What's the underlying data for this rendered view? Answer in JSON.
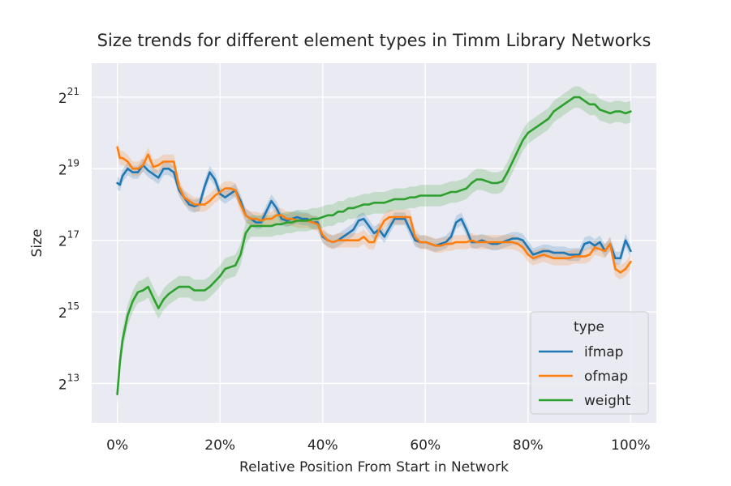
{
  "chart_data": {
    "type": "line",
    "title": "Size trends for different element types in Timm Library Networks",
    "xlabel": "Relative Position From Start in Network",
    "ylabel": "Size",
    "xlim": [
      -0.05,
      1.05
    ],
    "ylim_log2": [
      11.9,
      21.95
    ],
    "y_scale": "log2",
    "grid": true,
    "x_ticks": [
      {
        "value": 0.0,
        "label": "0%"
      },
      {
        "value": 0.2,
        "label": "20%"
      },
      {
        "value": 0.4,
        "label": "40%"
      },
      {
        "value": 0.6,
        "label": "60%"
      },
      {
        "value": 0.8,
        "label": "80%"
      },
      {
        "value": 1.0,
        "label": "100%"
      }
    ],
    "y_ticks": [
      {
        "value": 13,
        "base": "2",
        "exp": "13"
      },
      {
        "value": 15,
        "base": "2",
        "exp": "15"
      },
      {
        "value": 17,
        "base": "2",
        "exp": "17"
      },
      {
        "value": 19,
        "base": "2",
        "exp": "19"
      },
      {
        "value": 21,
        "base": "2",
        "exp": "21"
      }
    ],
    "legend": {
      "title": "type",
      "position": "lower-right"
    },
    "series": [
      {
        "name": "ifmap",
        "color": "#1f77b4",
        "x": [
          0.0,
          0.005,
          0.01,
          0.02,
          0.03,
          0.04,
          0.05,
          0.06,
          0.07,
          0.08,
          0.09,
          0.1,
          0.11,
          0.12,
          0.13,
          0.14,
          0.15,
          0.16,
          0.17,
          0.18,
          0.19,
          0.2,
          0.21,
          0.22,
          0.23,
          0.24,
          0.25,
          0.26,
          0.27,
          0.28,
          0.29,
          0.3,
          0.31,
          0.32,
          0.33,
          0.34,
          0.35,
          0.36,
          0.37,
          0.38,
          0.39,
          0.4,
          0.41,
          0.42,
          0.43,
          0.44,
          0.45,
          0.46,
          0.47,
          0.48,
          0.49,
          0.5,
          0.51,
          0.52,
          0.53,
          0.54,
          0.55,
          0.56,
          0.57,
          0.58,
          0.59,
          0.6,
          0.61,
          0.62,
          0.63,
          0.64,
          0.65,
          0.66,
          0.67,
          0.68,
          0.69,
          0.7,
          0.71,
          0.72,
          0.73,
          0.74,
          0.75,
          0.76,
          0.77,
          0.78,
          0.79,
          0.8,
          0.81,
          0.82,
          0.83,
          0.84,
          0.85,
          0.86,
          0.87,
          0.88,
          0.89,
          0.9,
          0.91,
          0.92,
          0.93,
          0.94,
          0.95,
          0.96,
          0.97,
          0.98,
          0.99,
          1.0
        ],
        "y": [
          18.6,
          18.55,
          18.8,
          19.0,
          18.9,
          18.9,
          19.1,
          18.95,
          18.85,
          18.75,
          19.0,
          19.0,
          18.9,
          18.4,
          18.2,
          18.0,
          17.95,
          18.0,
          18.5,
          18.9,
          18.7,
          18.3,
          18.2,
          18.3,
          18.4,
          18.1,
          17.7,
          17.6,
          17.5,
          17.5,
          17.8,
          18.1,
          17.9,
          17.6,
          17.55,
          17.6,
          17.65,
          17.6,
          17.6,
          17.5,
          17.5,
          17.1,
          17.0,
          16.95,
          17.0,
          17.1,
          17.2,
          17.3,
          17.55,
          17.6,
          17.4,
          17.2,
          17.3,
          17.1,
          17.35,
          17.6,
          17.6,
          17.6,
          17.3,
          17.0,
          16.95,
          16.95,
          16.9,
          16.85,
          16.9,
          16.95,
          17.1,
          17.5,
          17.6,
          17.3,
          16.95,
          16.95,
          17.0,
          16.95,
          16.9,
          16.9,
          16.95,
          17.0,
          17.05,
          17.05,
          17.0,
          16.8,
          16.6,
          16.65,
          16.7,
          16.7,
          16.65,
          16.65,
          16.65,
          16.6,
          16.6,
          16.6,
          16.9,
          16.95,
          16.85,
          16.95,
          16.7,
          16.9,
          16.5,
          16.5,
          17.0,
          16.7
        ],
        "ci_width": 0.18
      },
      {
        "name": "ofmap",
        "color": "#ff7f0e",
        "x": [
          0.0,
          0.005,
          0.01,
          0.02,
          0.03,
          0.04,
          0.05,
          0.06,
          0.07,
          0.08,
          0.09,
          0.1,
          0.11,
          0.12,
          0.13,
          0.14,
          0.15,
          0.16,
          0.17,
          0.18,
          0.19,
          0.2,
          0.21,
          0.22,
          0.23,
          0.24,
          0.25,
          0.26,
          0.27,
          0.28,
          0.29,
          0.3,
          0.31,
          0.32,
          0.33,
          0.34,
          0.35,
          0.36,
          0.37,
          0.38,
          0.39,
          0.4,
          0.41,
          0.42,
          0.43,
          0.44,
          0.45,
          0.46,
          0.47,
          0.48,
          0.49,
          0.5,
          0.51,
          0.52,
          0.53,
          0.54,
          0.55,
          0.56,
          0.57,
          0.58,
          0.59,
          0.6,
          0.61,
          0.62,
          0.63,
          0.64,
          0.65,
          0.66,
          0.67,
          0.68,
          0.69,
          0.7,
          0.71,
          0.72,
          0.73,
          0.74,
          0.75,
          0.76,
          0.77,
          0.78,
          0.79,
          0.8,
          0.81,
          0.82,
          0.83,
          0.84,
          0.85,
          0.86,
          0.87,
          0.88,
          0.89,
          0.9,
          0.91,
          0.92,
          0.93,
          0.94,
          0.95,
          0.96,
          0.97,
          0.98,
          0.99,
          1.0
        ],
        "y": [
          19.6,
          19.3,
          19.3,
          19.2,
          19.0,
          19.0,
          19.1,
          19.4,
          19.05,
          19.1,
          19.2,
          19.2,
          19.2,
          18.5,
          18.2,
          18.1,
          18.0,
          18.0,
          18.0,
          18.1,
          18.25,
          18.35,
          18.45,
          18.45,
          18.4,
          18.0,
          17.7,
          17.6,
          17.6,
          17.55,
          17.6,
          17.6,
          17.7,
          17.7,
          17.6,
          17.6,
          17.55,
          17.55,
          17.55,
          17.5,
          17.45,
          17.15,
          17.0,
          16.95,
          17.0,
          17.0,
          17.0,
          17.0,
          17.0,
          17.1,
          16.95,
          16.95,
          17.3,
          17.55,
          17.65,
          17.65,
          17.65,
          17.65,
          17.65,
          17.1,
          16.95,
          16.95,
          16.9,
          16.85,
          16.85,
          16.9,
          16.9,
          16.95,
          16.95,
          16.95,
          17.0,
          16.95,
          16.95,
          16.95,
          16.95,
          16.95,
          16.95,
          16.95,
          16.95,
          16.9,
          16.8,
          16.6,
          16.5,
          16.55,
          16.6,
          16.55,
          16.5,
          16.5,
          16.5,
          16.5,
          16.55,
          16.55,
          16.55,
          16.6,
          16.8,
          16.75,
          16.7,
          16.9,
          16.2,
          16.1,
          16.2,
          16.4
        ],
        "ci_width": 0.2
      },
      {
        "name": "weight",
        "color": "#2ca02c",
        "x": [
          0.0,
          0.005,
          0.01,
          0.02,
          0.03,
          0.04,
          0.05,
          0.06,
          0.07,
          0.08,
          0.09,
          0.1,
          0.11,
          0.12,
          0.13,
          0.14,
          0.15,
          0.16,
          0.17,
          0.18,
          0.19,
          0.2,
          0.21,
          0.22,
          0.23,
          0.24,
          0.25,
          0.26,
          0.27,
          0.28,
          0.29,
          0.3,
          0.31,
          0.32,
          0.33,
          0.34,
          0.35,
          0.36,
          0.37,
          0.38,
          0.39,
          0.4,
          0.41,
          0.42,
          0.43,
          0.44,
          0.45,
          0.46,
          0.47,
          0.48,
          0.49,
          0.5,
          0.51,
          0.52,
          0.53,
          0.54,
          0.55,
          0.56,
          0.57,
          0.58,
          0.59,
          0.6,
          0.61,
          0.62,
          0.63,
          0.64,
          0.65,
          0.66,
          0.67,
          0.68,
          0.69,
          0.7,
          0.71,
          0.72,
          0.73,
          0.74,
          0.75,
          0.76,
          0.77,
          0.78,
          0.79,
          0.8,
          0.81,
          0.82,
          0.83,
          0.84,
          0.85,
          0.86,
          0.87,
          0.88,
          0.89,
          0.9,
          0.91,
          0.92,
          0.93,
          0.94,
          0.95,
          0.96,
          0.97,
          0.98,
          0.99,
          1.0
        ],
        "y": [
          12.7,
          13.6,
          14.2,
          14.9,
          15.3,
          15.55,
          15.6,
          15.7,
          15.4,
          15.1,
          15.35,
          15.5,
          15.6,
          15.7,
          15.7,
          15.7,
          15.6,
          15.6,
          15.6,
          15.7,
          15.85,
          16.0,
          16.2,
          16.25,
          16.3,
          16.6,
          17.2,
          17.4,
          17.4,
          17.4,
          17.4,
          17.4,
          17.45,
          17.45,
          17.5,
          17.5,
          17.55,
          17.55,
          17.55,
          17.6,
          17.6,
          17.65,
          17.7,
          17.7,
          17.8,
          17.8,
          17.9,
          17.9,
          17.95,
          18.0,
          18.0,
          18.05,
          18.05,
          18.05,
          18.1,
          18.15,
          18.15,
          18.15,
          18.2,
          18.2,
          18.25,
          18.25,
          18.25,
          18.25,
          18.25,
          18.3,
          18.35,
          18.35,
          18.4,
          18.45,
          18.6,
          18.7,
          18.7,
          18.65,
          18.6,
          18.6,
          18.65,
          18.9,
          19.2,
          19.5,
          19.8,
          20.0,
          20.1,
          20.2,
          20.3,
          20.4,
          20.6,
          20.7,
          20.8,
          20.9,
          21.0,
          21.0,
          20.9,
          20.8,
          20.8,
          20.65,
          20.6,
          20.55,
          20.6,
          20.6,
          20.55,
          20.6
        ],
        "ci_width": 0.3
      }
    ]
  }
}
